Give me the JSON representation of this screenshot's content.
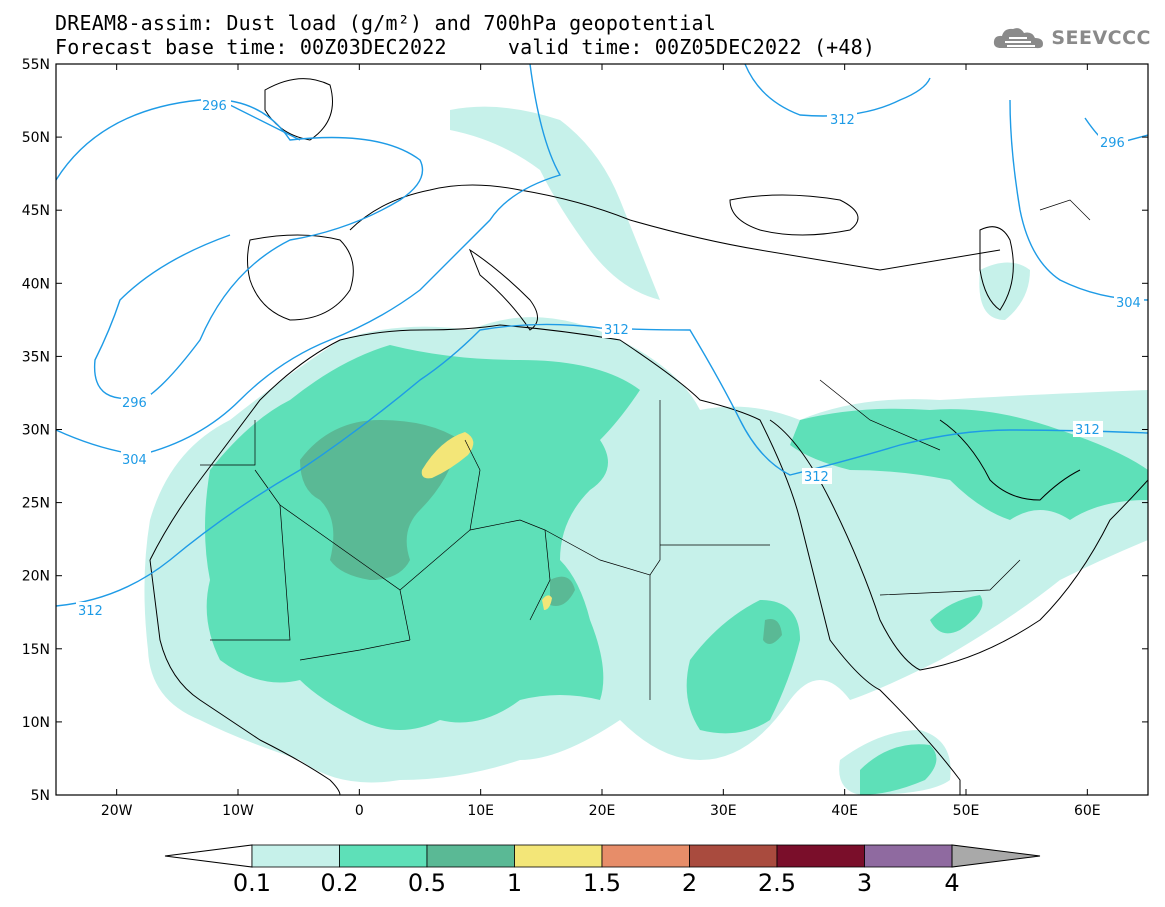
{
  "title": {
    "line1": "DREAM8-assim: Dust load (g/m²) and 700hPa geopotential",
    "line2": "Forecast base time: 00Z03DEC2022     valid time: 00Z05DEC2022 (+48)"
  },
  "logo": {
    "text": "SEEVCCC",
    "icon": "cloud-icon"
  },
  "map": {
    "lon_range": [
      -25,
      65
    ],
    "lat_range": [
      5,
      55
    ],
    "lat_ticks": [
      "55N",
      "50N",
      "45N",
      "40N",
      "35N",
      "30N",
      "25N",
      "20N",
      "15N",
      "10N",
      "5N"
    ],
    "lon_ticks": [
      "20W",
      "10W",
      "0",
      "10E",
      "20E",
      "30E",
      "40E",
      "50E",
      "60E"
    ],
    "contour_color": "#1e9be6",
    "contour_labels": [
      "296",
      "312",
      "296",
      "296",
      "304",
      "312",
      "312",
      "312",
      "304",
      "312"
    ]
  },
  "colorbar": {
    "levels": [
      "0.1",
      "0.2",
      "0.5",
      "1",
      "1.5",
      "2",
      "2.5",
      "3",
      "4"
    ],
    "colors": [
      "#c6f1ea",
      "#5ee0b8",
      "#5ab995",
      "#f3e678",
      "#e78d69",
      "#a94b3e",
      "#7a0e2a",
      "#8f6aa0"
    ],
    "under_color": "#ffffff",
    "over_color": "#a9a9a9"
  }
}
